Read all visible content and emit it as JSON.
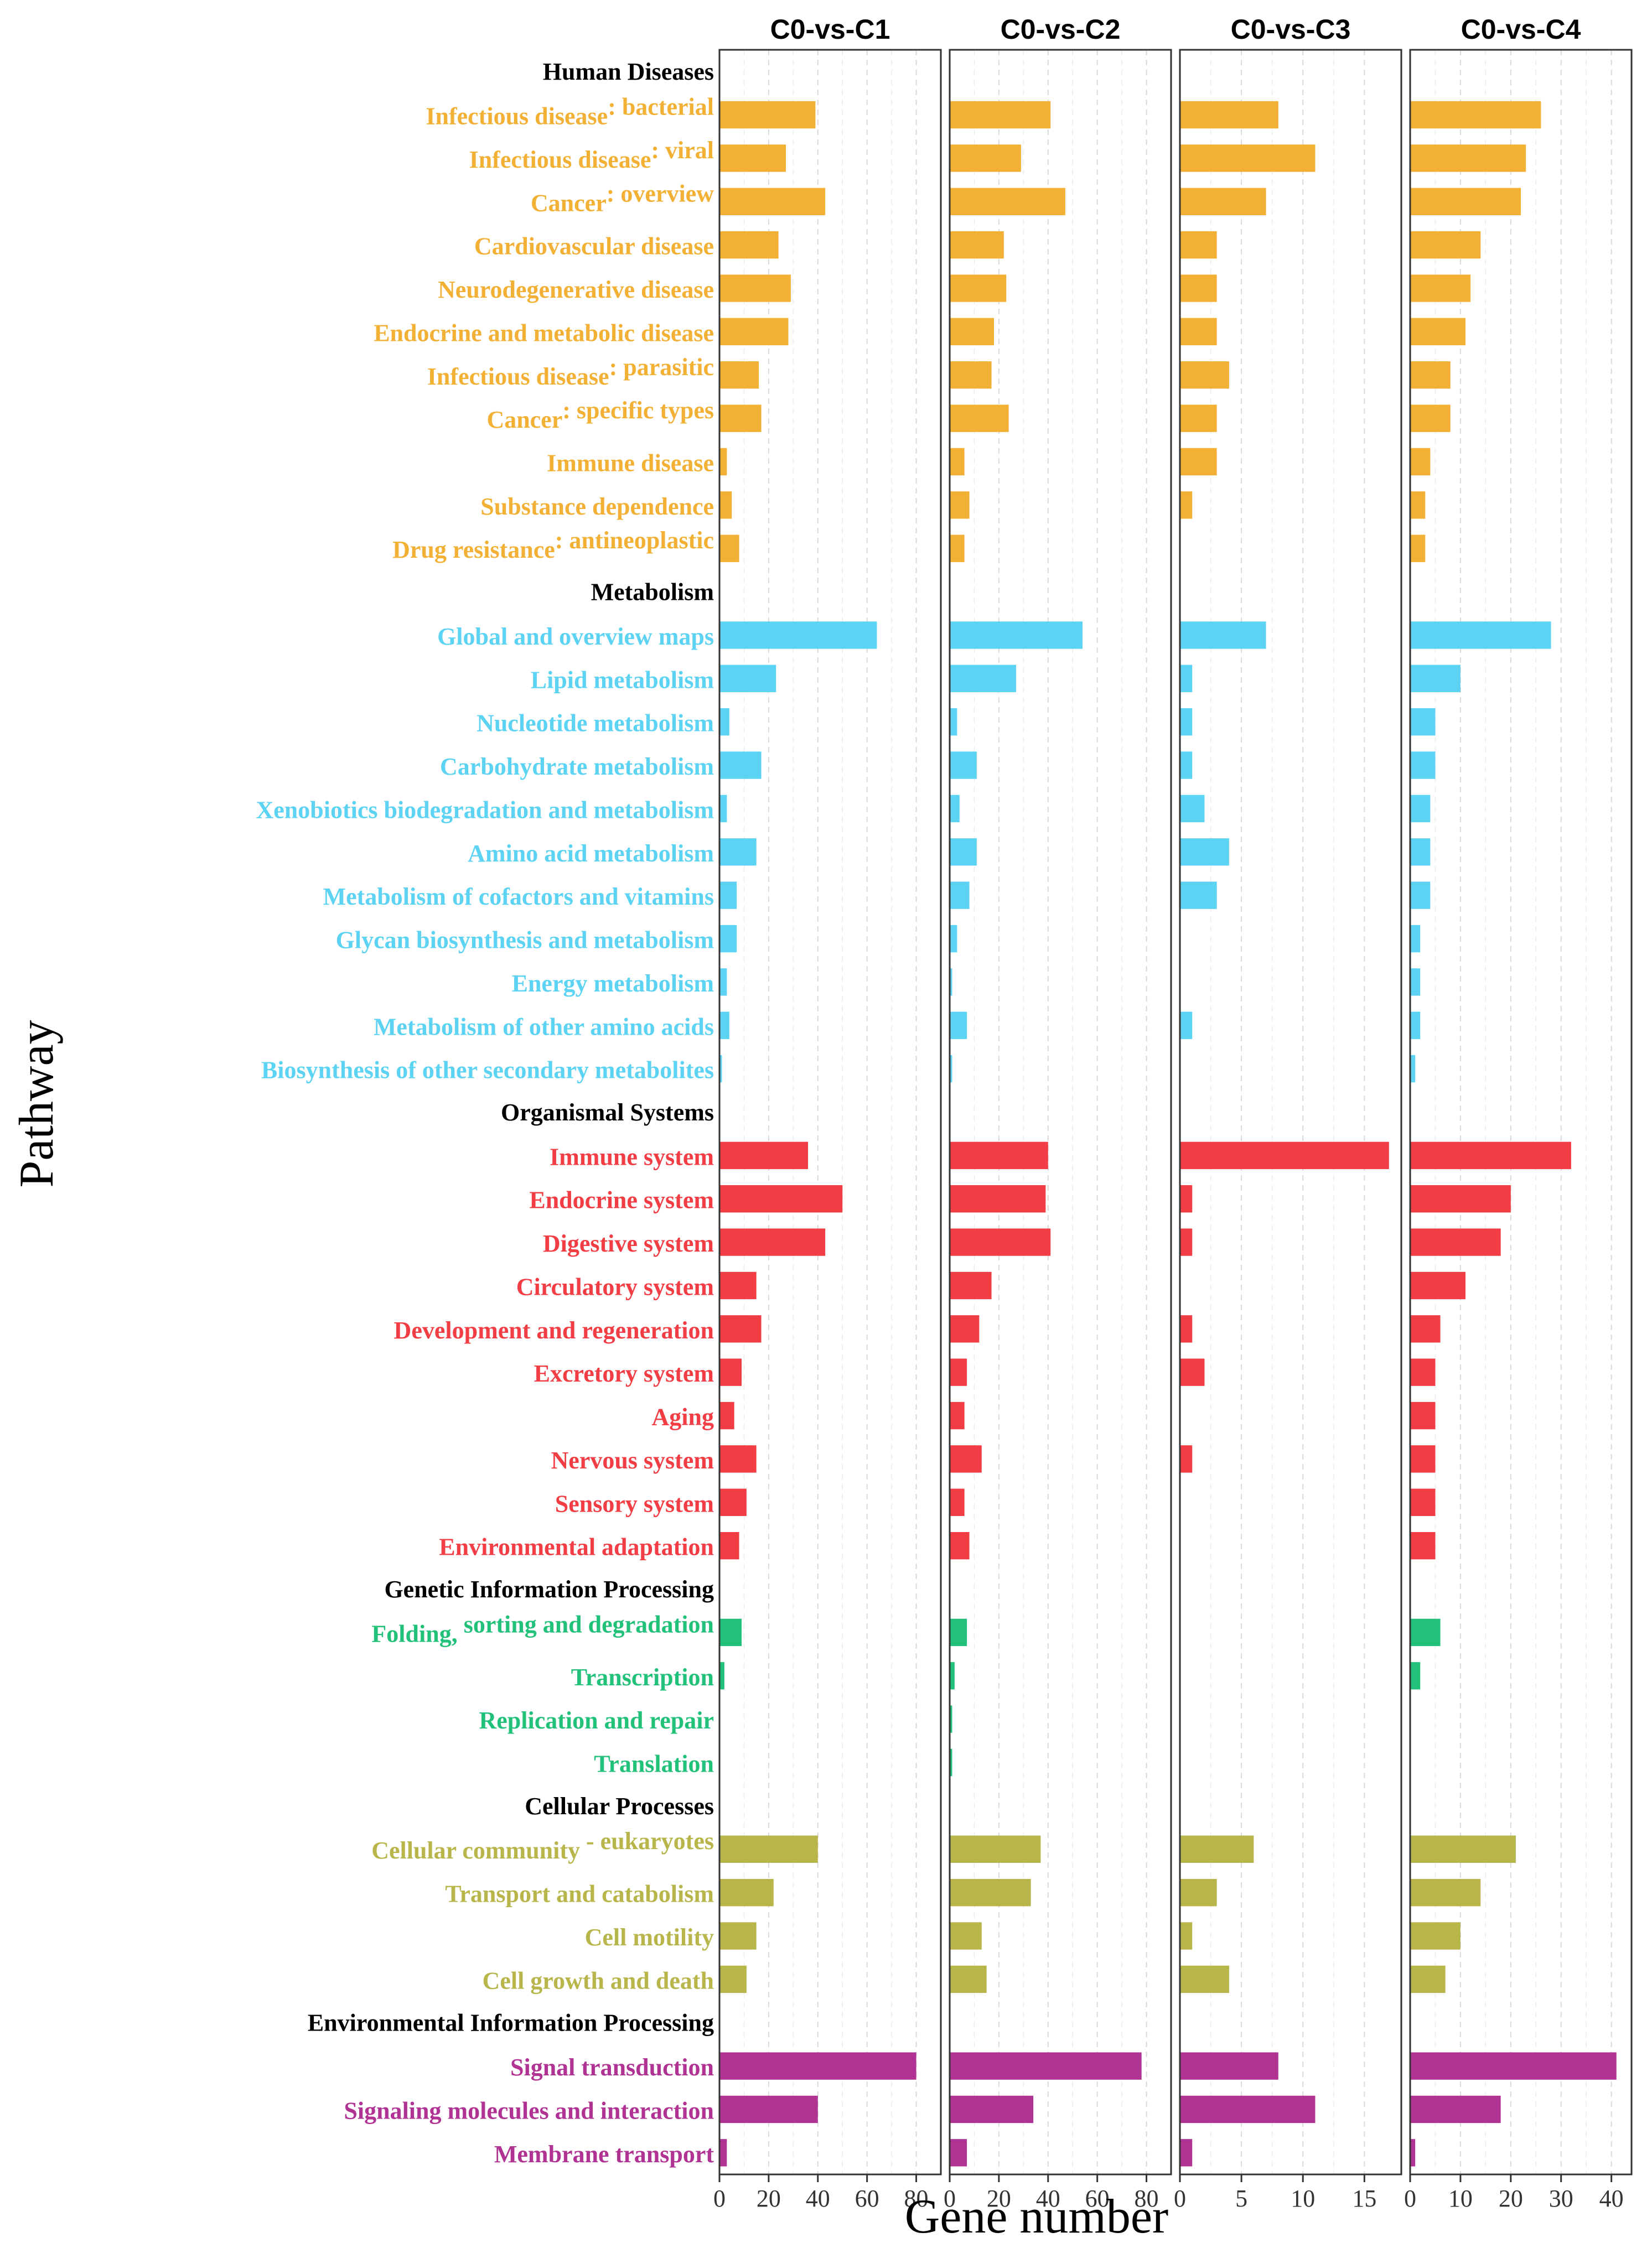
{
  "chart_data": {
    "type": "bar",
    "orientation": "horizontal",
    "xlabel": "Gene number",
    "ylabel": "Pathway",
    "grid": "vertical dashed",
    "groups": [
      {
        "name": "Human Diseases",
        "color": "#F2B035"
      },
      {
        "name": "Metabolism",
        "color": "#5CD3F3"
      },
      {
        "name": "Organismal Systems",
        "color": "#F23D45"
      },
      {
        "name": "Genetic Information Processing",
        "color": "#22C179"
      },
      {
        "name": "Cellular Processes",
        "color": "#B8B54A"
      },
      {
        "name": "Environmental Information Processing",
        "color": "#B03393"
      }
    ],
    "rows": [
      {
        "kind": "header",
        "label": "Human Diseases"
      },
      {
        "kind": "cat",
        "group": 0,
        "label": "Infectious disease",
        "suffix": ": bacterial"
      },
      {
        "kind": "cat",
        "group": 0,
        "label": "Infectious disease",
        "suffix": ": viral"
      },
      {
        "kind": "cat",
        "group": 0,
        "label": "Cancer",
        "suffix": ": overview"
      },
      {
        "kind": "cat",
        "group": 0,
        "label": "Cardiovascular disease"
      },
      {
        "kind": "cat",
        "group": 0,
        "label": "Neurodegenerative disease"
      },
      {
        "kind": "cat",
        "group": 0,
        "label": "Endocrine and metabolic disease"
      },
      {
        "kind": "cat",
        "group": 0,
        "label": "Infectious disease",
        "suffix": ": parasitic"
      },
      {
        "kind": "cat",
        "group": 0,
        "label": "Cancer",
        "suffix": ": specific types"
      },
      {
        "kind": "cat",
        "group": 0,
        "label": "Immune disease"
      },
      {
        "kind": "cat",
        "group": 0,
        "label": "Substance dependence"
      },
      {
        "kind": "cat",
        "group": 0,
        "label": "Drug resistance",
        "suffix": ": antineoplastic"
      },
      {
        "kind": "header",
        "label": "Metabolism"
      },
      {
        "kind": "cat",
        "group": 1,
        "label": "Global and overview maps"
      },
      {
        "kind": "cat",
        "group": 1,
        "label": "Lipid metabolism"
      },
      {
        "kind": "cat",
        "group": 1,
        "label": "Nucleotide metabolism"
      },
      {
        "kind": "cat",
        "group": 1,
        "label": "Carbohydrate metabolism"
      },
      {
        "kind": "cat",
        "group": 1,
        "label": "Xenobiotics biodegradation and metabolism"
      },
      {
        "kind": "cat",
        "group": 1,
        "label": "Amino acid metabolism"
      },
      {
        "kind": "cat",
        "group": 1,
        "label": "Metabolism of cofactors and vitamins"
      },
      {
        "kind": "cat",
        "group": 1,
        "label": "Glycan biosynthesis and metabolism"
      },
      {
        "kind": "cat",
        "group": 1,
        "label": "Energy metabolism"
      },
      {
        "kind": "cat",
        "group": 1,
        "label": "Metabolism of other amino acids"
      },
      {
        "kind": "cat",
        "group": 1,
        "label": "Biosynthesis of other secondary metabolites"
      },
      {
        "kind": "header",
        "label": "Organismal Systems"
      },
      {
        "kind": "cat",
        "group": 2,
        "label": "Immune system"
      },
      {
        "kind": "cat",
        "group": 2,
        "label": "Endocrine system"
      },
      {
        "kind": "cat",
        "group": 2,
        "label": "Digestive system"
      },
      {
        "kind": "cat",
        "group": 2,
        "label": "Circulatory system"
      },
      {
        "kind": "cat",
        "group": 2,
        "label": "Development and regeneration"
      },
      {
        "kind": "cat",
        "group": 2,
        "label": "Excretory system"
      },
      {
        "kind": "cat",
        "group": 2,
        "label": "Aging"
      },
      {
        "kind": "cat",
        "group": 2,
        "label": "Nervous system"
      },
      {
        "kind": "cat",
        "group": 2,
        "label": "Sensory system"
      },
      {
        "kind": "cat",
        "group": 2,
        "label": "Environmental adaptation"
      },
      {
        "kind": "header",
        "label": "Genetic Information Processing"
      },
      {
        "kind": "cat",
        "group": 3,
        "label": "Folding,",
        "suffix": " sorting and degradation"
      },
      {
        "kind": "cat",
        "group": 3,
        "label": "Transcription"
      },
      {
        "kind": "cat",
        "group": 3,
        "label": "Replication and repair"
      },
      {
        "kind": "cat",
        "group": 3,
        "label": "Translation"
      },
      {
        "kind": "header",
        "label": "Cellular Processes"
      },
      {
        "kind": "cat",
        "group": 4,
        "label": "Cellular community",
        "suffix": " - eukaryotes"
      },
      {
        "kind": "cat",
        "group": 4,
        "label": "Transport and catabolism"
      },
      {
        "kind": "cat",
        "group": 4,
        "label": "Cell motility"
      },
      {
        "kind": "cat",
        "group": 4,
        "label": "Cell growth and death"
      },
      {
        "kind": "header",
        "label": "Environmental Information Processing"
      },
      {
        "kind": "cat",
        "group": 5,
        "label": "Signal transduction"
      },
      {
        "kind": "cat",
        "group": 5,
        "label": "Signaling molecules and interaction"
      },
      {
        "kind": "cat",
        "group": 5,
        "label": "Membrane transport"
      }
    ],
    "series": [
      {
        "name": "C0-vs-C1",
        "xlim": [
          0,
          90
        ],
        "ticks": [
          0,
          20,
          40,
          60,
          80
        ],
        "values": [
          39,
          27,
          43,
          24,
          29,
          28,
          16,
          17,
          3,
          5,
          8,
          64,
          23,
          4,
          17,
          3,
          15,
          7,
          7,
          3,
          4,
          1,
          36,
          50,
          43,
          15,
          17,
          9,
          6,
          15,
          11,
          8,
          9,
          2,
          0,
          0,
          40,
          22,
          15,
          11,
          80,
          40,
          3
        ]
      },
      {
        "name": "C0-vs-C2",
        "xlim": [
          0,
          90
        ],
        "ticks": [
          0,
          20,
          40,
          60,
          80
        ],
        "values": [
          41,
          29,
          47,
          22,
          23,
          18,
          17,
          24,
          6,
          8,
          6,
          54,
          27,
          3,
          11,
          4,
          11,
          8,
          3,
          1,
          7,
          1,
          40,
          39,
          41,
          17,
          12,
          7,
          6,
          13,
          6,
          8,
          7,
          2,
          1,
          1,
          37,
          33,
          13,
          15,
          78,
          34,
          7
        ]
      },
      {
        "name": "C0-vs-C3",
        "xlim": [
          0,
          18
        ],
        "ticks": [
          0,
          5,
          10,
          15
        ],
        "values": [
          8,
          11,
          7,
          3,
          3,
          3,
          4,
          3,
          3,
          1,
          0,
          7,
          1,
          1,
          1,
          2,
          4,
          3,
          0,
          0,
          1,
          0,
          17,
          1,
          1,
          0,
          1,
          2,
          0,
          1,
          0,
          0,
          0,
          0,
          0,
          0,
          6,
          3,
          1,
          4,
          8,
          11,
          1
        ]
      },
      {
        "name": "C0-vs-C4",
        "xlim": [
          0,
          44
        ],
        "ticks": [
          0,
          10,
          20,
          30,
          40
        ],
        "values": [
          26,
          23,
          22,
          14,
          12,
          11,
          8,
          8,
          4,
          3,
          3,
          28,
          10,
          5,
          5,
          4,
          4,
          4,
          2,
          2,
          2,
          1,
          32,
          20,
          18,
          11,
          6,
          5,
          5,
          5,
          5,
          5,
          6,
          2,
          0,
          0,
          21,
          14,
          10,
          7,
          41,
          18,
          1
        ]
      }
    ]
  }
}
